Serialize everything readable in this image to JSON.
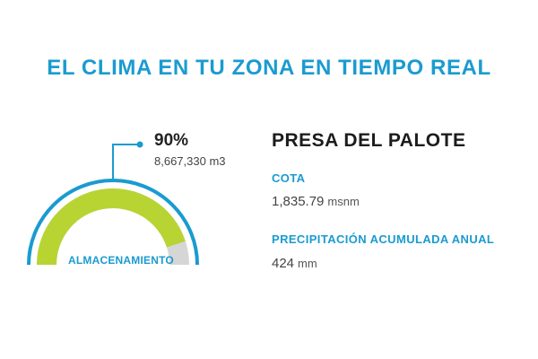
{
  "header": {
    "title": "EL CLIMA EN TU ZONA EN TIEMPO REAL"
  },
  "gauge": {
    "level": 0.9,
    "percent_label": "90%",
    "volume": "8,667,330 m3",
    "label": "ALMACENAMIENTO",
    "colors": {
      "fill": "#b8d432",
      "track": "#d6d6d6",
      "outer": "#1a9bd0",
      "pointer": "#1a9bd0"
    }
  },
  "dam": {
    "name": "PRESA DEL PALOTE",
    "cota": {
      "label": "COTA",
      "value": "1,835.79",
      "unit": "msnm"
    },
    "precip": {
      "label": "PRECIPITACIÓN ACUMULADA ANUAL",
      "value": "424",
      "unit": "mm"
    }
  }
}
